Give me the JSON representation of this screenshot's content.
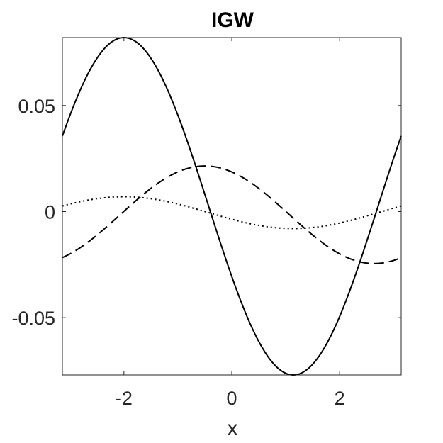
{
  "chart_data": {
    "type": "line",
    "title": "IGW",
    "xlabel": "x",
    "ylabel": "",
    "xlim": [
      -3.14159,
      3.14159
    ],
    "ylim": [
      -0.077,
      0.082
    ],
    "xticks": [
      -2,
      0,
      2
    ],
    "xtick_labels": [
      "-2",
      "0",
      "2"
    ],
    "yticks": [
      -0.05,
      0,
      0.05
    ],
    "ytick_labels": [
      "-0.05",
      "0",
      "0.05"
    ],
    "grid": false,
    "box": true,
    "series": [
      {
        "style": "solid",
        "color": "#000000",
        "amplitude": 0.0795,
        "peak_x": -2.0,
        "offset": 0.0025
      },
      {
        "style": "dashed",
        "color": "#000000",
        "amplitude": 0.023,
        "peak_x": -0.5,
        "offset": -0.0015
      },
      {
        "style": "dotted",
        "color": "#000000",
        "amplitude": 0.0075,
        "peak_x": -2.0,
        "offset": -0.0005
      }
    ]
  }
}
